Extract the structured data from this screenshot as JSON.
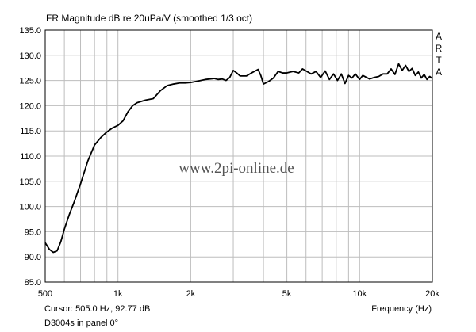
{
  "chart_data": {
    "type": "line",
    "title": "FR Magnitude dB re 20uPa/V (smoothed 1/3 oct)",
    "xlabel": "Frequency (Hz)",
    "ylabel": "",
    "x_scale": "log",
    "xlim": [
      500,
      20000
    ],
    "ylim": [
      85,
      135
    ],
    "grid": true,
    "x_ticks": [
      {
        "value": 500,
        "label": "500"
      },
      {
        "value": 1000,
        "label": "1k"
      },
      {
        "value": 2000,
        "label": "2k"
      },
      {
        "value": 5000,
        "label": "5k"
      },
      {
        "value": 10000,
        "label": "10k"
      },
      {
        "value": 20000,
        "label": "20k"
      }
    ],
    "y_ticks": [
      {
        "value": 85,
        "label": "85.0"
      },
      {
        "value": 90,
        "label": "90.0"
      },
      {
        "value": 95,
        "label": "95.0"
      },
      {
        "value": 100,
        "label": "100.0"
      },
      {
        "value": 105,
        "label": "105.0"
      },
      {
        "value": 110,
        "label": "110.0"
      },
      {
        "value": 115,
        "label": "115.0"
      },
      {
        "value": 120,
        "label": "120.0"
      },
      {
        "value": 125,
        "label": "125.0"
      },
      {
        "value": 130,
        "label": "130.0"
      },
      {
        "value": 135,
        "label": "135.0"
      }
    ],
    "series": [
      {
        "color": "#000000",
        "x": [
          500,
          520,
          540,
          560,
          580,
          600,
          630,
          660,
          700,
          750,
          800,
          850,
          900,
          950,
          1000,
          1050,
          1100,
          1150,
          1200,
          1300,
          1400,
          1500,
          1600,
          1700,
          1800,
          1900,
          2000,
          2100,
          2200,
          2300,
          2400,
          2500,
          2600,
          2700,
          2800,
          2900,
          3000,
          3100,
          3200,
          3400,
          3600,
          3800,
          3900,
          4000,
          4200,
          4400,
          4600,
          4800,
          5000,
          5300,
          5600,
          5800,
          6000,
          6300,
          6600,
          6900,
          7200,
          7500,
          7800,
          8100,
          8400,
          8700,
          9000,
          9300,
          9600,
          10000,
          10300,
          10600,
          11000,
          11500,
          12000,
          12500,
          13000,
          13500,
          14000,
          14500,
          15000,
          15500,
          16000,
          16500,
          17000,
          17500,
          18000,
          18500,
          19000,
          19500,
          20000
        ],
        "values": [
          92.8,
          91.5,
          90.9,
          91.2,
          93.0,
          95.5,
          98.5,
          101.0,
          104.5,
          109.0,
          112.2,
          113.7,
          114.8,
          115.6,
          116.1,
          117.0,
          118.8,
          120.0,
          120.6,
          121.1,
          121.4,
          123.0,
          124.0,
          124.3,
          124.5,
          124.5,
          124.6,
          124.8,
          125.0,
          125.2,
          125.3,
          125.4,
          125.2,
          125.3,
          125.0,
          125.6,
          127.0,
          126.5,
          125.9,
          125.9,
          126.6,
          127.2,
          126.0,
          124.3,
          124.8,
          125.5,
          126.8,
          126.5,
          126.5,
          126.8,
          126.5,
          127.3,
          126.9,
          126.3,
          126.8,
          125.6,
          126.9,
          125.2,
          126.3,
          125.0,
          126.3,
          124.4,
          126.0,
          125.5,
          126.3,
          125.2,
          126.0,
          125.7,
          125.3,
          125.6,
          125.8,
          126.3,
          126.3,
          127.3,
          126.2,
          128.3,
          127.0,
          128.0,
          126.8,
          127.4,
          126.0,
          126.7,
          125.5,
          126.2,
          125.2,
          125.8,
          125.4
        ]
      }
    ],
    "side_label": [
      "A",
      "R",
      "T",
      "A"
    ],
    "watermark": "www.2pi-online.de",
    "cursor_readout": "Cursor: 505.0 Hz, 92.77 dB",
    "panel_note": "D3004s in panel 0°"
  }
}
